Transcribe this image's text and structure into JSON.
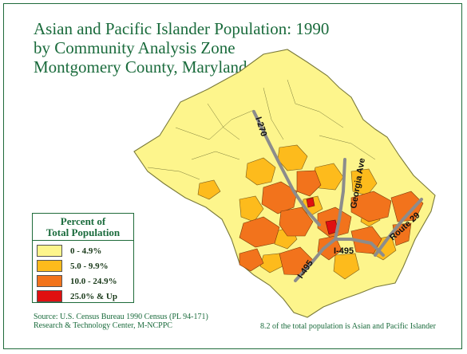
{
  "title": {
    "line1": "Asian and Pacific Islander Population: 1990",
    "line2": "by Community Analysis Zone",
    "line3": "Montgomery County, Maryland"
  },
  "legend": {
    "title_line1": "Percent of",
    "title_line2": "Total Population",
    "classes": [
      {
        "label": "0 - 4.9%",
        "color": "#fdf58c"
      },
      {
        "label": "5.0 - 9.9%",
        "color": "#fdbb1c"
      },
      {
        "label": "10.0 - 24.9%",
        "color": "#f2731c"
      },
      {
        "label": "25.0% & Up",
        "color": "#e01010"
      }
    ]
  },
  "roads": {
    "i270": "I-270",
    "georgia": "Georgia Ave",
    "route29": "Route 29",
    "i495_east": "I-495",
    "i495_west": "I-495"
  },
  "source": {
    "line1": "Source: U.S. Census Bureau 1990 Census (PL  94-171)",
    "line2": "Research & Technology Center, M-NCPPC"
  },
  "note": "8.2 of the total population is Asian and Pacific Islander",
  "colors": {
    "accent": "#1a6b3c",
    "road": "#8c8c8c",
    "border": "#1f6b3a"
  }
}
